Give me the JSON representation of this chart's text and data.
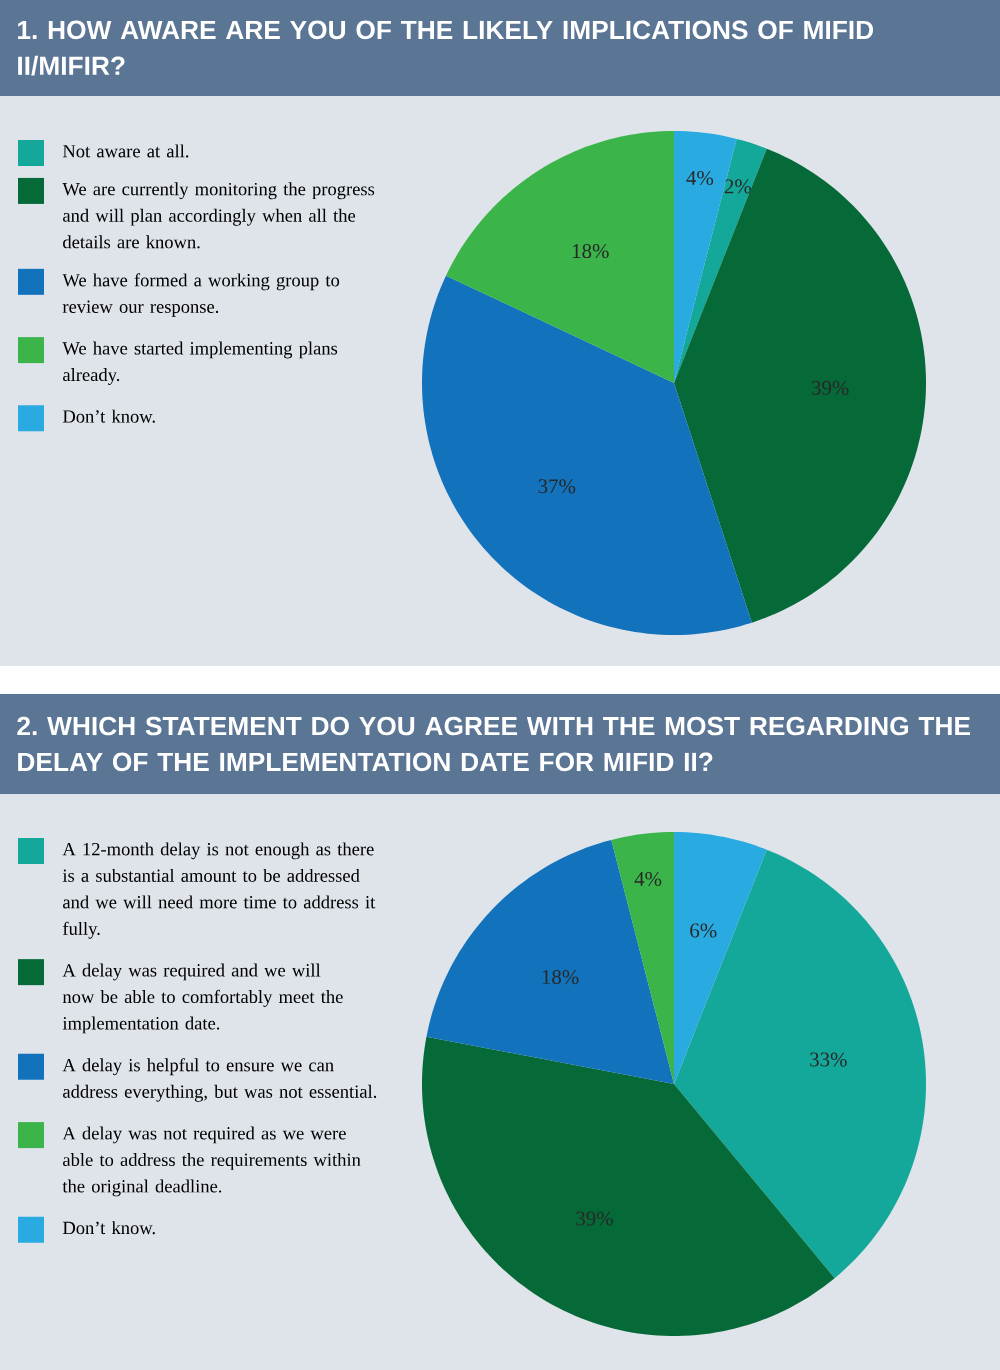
{
  "chart_data": [
    {
      "type": "pie",
      "title": "1. HOW AWARE ARE YOU OF THE LIKELY IMPLICATIONS OF MIFID II/MIFIR?",
      "categories": [
        "Not aware at all.",
        "We are currently monitoring the progress and will plan accordingly when all the details are known.",
        "We have formed a working group to review our response.",
        "We have started implementing plans already.",
        "Don’t know."
      ],
      "values": [
        2,
        39,
        37,
        18,
        4
      ],
      "value_labels": [
        "2%",
        "39%",
        "37%",
        "18%",
        "4%"
      ],
      "colors": [
        "#14a89a",
        "#056938",
        "#1272bc",
        "#3bb54a",
        "#29abe2"
      ],
      "legend": "left"
    },
    {
      "type": "pie",
      "title": "2. WHICH STATEMENT DO YOU AGREE WITH THE MOST REGARDING THE DELAY OF THE IMPLEMENTATION DATE FOR MIFID II?",
      "categories": [
        "A 12-month delay is not enough as there is a substantial amount to be addressed and we will need more time to address it fully.",
        "A delay was required and we will now be able to comfortably meet the implementation date.",
        "A delay is helpful to ensure we can address everything, but was not essential.",
        "A delay was not required as we were able to address the requirements within the original deadline.",
        "Don’t know."
      ],
      "values": [
        33,
        39,
        18,
        4,
        6
      ],
      "value_labels": [
        "33%",
        "39%",
        "18%",
        "4%",
        "6%"
      ],
      "colors": [
        "#14a89a",
        "#056938",
        "#1272bc",
        "#3bb54a",
        "#29abe2"
      ],
      "legend": "left"
    }
  ]
}
